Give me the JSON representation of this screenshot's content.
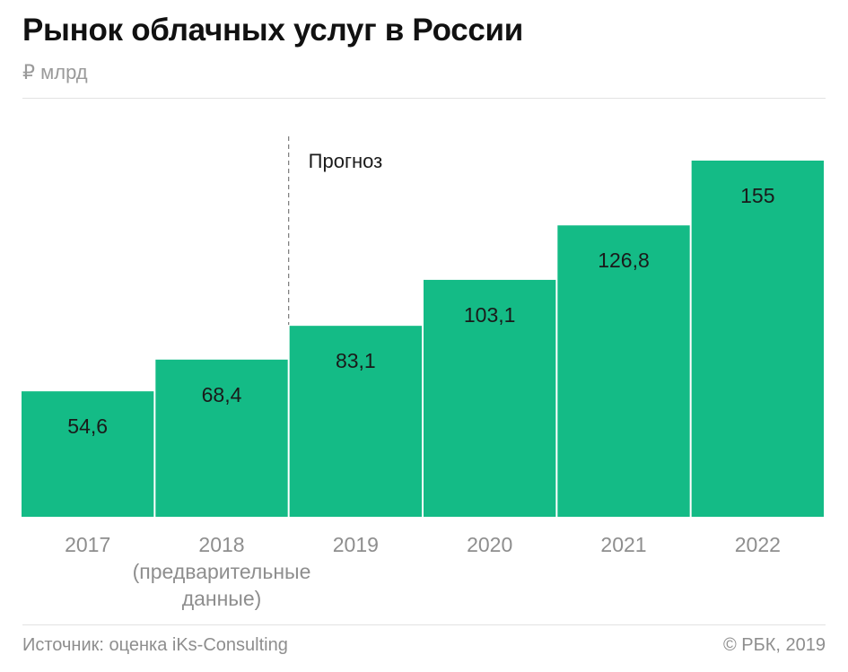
{
  "header": {
    "title": "Рынок облачных услуг в России",
    "subtitle": "₽ млрд"
  },
  "chart_data": {
    "type": "bar",
    "categories": [
      "2017",
      "2018\n(предварительные\nданные)",
      "2019",
      "2020",
      "2021",
      "2022"
    ],
    "values": [
      54.6,
      68.4,
      83.1,
      103.1,
      126.8,
      155
    ],
    "value_labels": [
      "54,6",
      "68,4",
      "83,1",
      "103,1",
      "126,8",
      "155"
    ],
    "forecast_label": "Прогноз",
    "forecast_start_index": 2,
    "ylim": [
      0,
      155
    ],
    "grid": false,
    "bar_color": "#14bb86"
  },
  "footer": {
    "source": "Источник: оценка iKs-Consulting",
    "copyright": "© РБК, 2019"
  }
}
